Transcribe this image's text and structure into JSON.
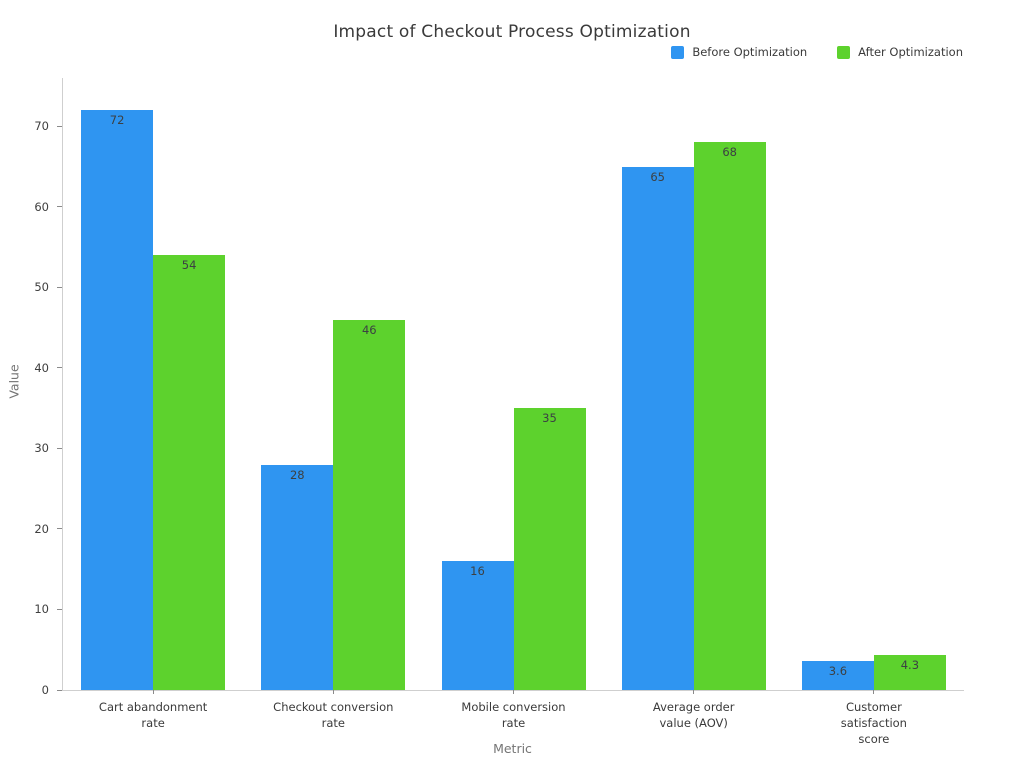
{
  "chart_data": {
    "type": "bar",
    "title": "Impact of Checkout Process Optimization",
    "xlabel": "Metric",
    "ylabel": "Value",
    "categories": [
      "Cart abandonment\nrate",
      "Checkout conversion\nrate",
      "Mobile conversion\nrate",
      "Average order\nvalue (AOV)",
      "Customer satisfaction\nscore"
    ],
    "series": [
      {
        "name": "Before Optimization",
        "color": "#2f95f1",
        "values": [
          72,
          28,
          16,
          65,
          3.6
        ]
      },
      {
        "name": "After Optimization",
        "color": "#5dd22d",
        "values": [
          54,
          46,
          35,
          68,
          4.3
        ]
      }
    ],
    "ylim": [
      0,
      76
    ],
    "yticks": [
      0,
      10,
      20,
      30,
      40,
      50,
      60,
      70
    ],
    "grid": false,
    "legend_position": "top-right",
    "bar_value_labels_shown": true
  },
  "colors": {
    "background": "#ffffff",
    "axis_spine": "#cfcfcf",
    "tick_text": "#3f3f3f",
    "axis_title_text": "#757575",
    "chart_title_text": "#3a3a3a",
    "bar_label_text": "#3c4043"
  }
}
